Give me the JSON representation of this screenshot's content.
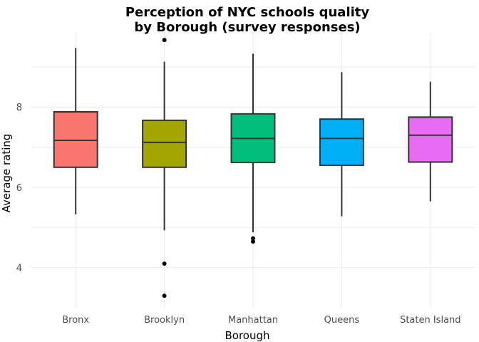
{
  "chart_data": {
    "type": "boxplot",
    "title": "Perception of NYC schools quality\nby Borough (survey responses)",
    "xlabel": "Borough",
    "ylabel": "Average rating",
    "categories": [
      "Bronx",
      "Brooklyn",
      "Manhattan",
      "Queens",
      "Staten Island"
    ],
    "ylim": [
      3.0,
      9.85
    ],
    "yticks": [
      4,
      6,
      8
    ],
    "grid": true,
    "legend": "none",
    "boxes": [
      {
        "category": "Bronx",
        "min": 5.33,
        "q1": 6.5,
        "median": 7.17,
        "q3": 7.88,
        "max": 9.47,
        "outliers": [],
        "color": "#F8766D"
      },
      {
        "category": "Brooklyn",
        "min": 4.93,
        "q1": 6.5,
        "median": 7.12,
        "q3": 7.67,
        "max": 9.13,
        "outliers": [
          9.67,
          4.1,
          3.3
        ],
        "color": "#A3A500"
      },
      {
        "category": "Manhattan",
        "min": 4.88,
        "q1": 6.62,
        "median": 7.22,
        "q3": 7.83,
        "max": 9.33,
        "outliers": [
          4.73,
          4.65
        ],
        "color": "#00BF7D"
      },
      {
        "category": "Queens",
        "min": 5.28,
        "q1": 6.55,
        "median": 7.22,
        "q3": 7.7,
        "max": 8.87,
        "outliers": [],
        "color": "#00B0F6"
      },
      {
        "category": "Staten Island",
        "min": 5.65,
        "q1": 6.63,
        "median": 7.3,
        "q3": 7.75,
        "max": 8.63,
        "outliers": [],
        "color": "#E76BF3"
      }
    ]
  }
}
